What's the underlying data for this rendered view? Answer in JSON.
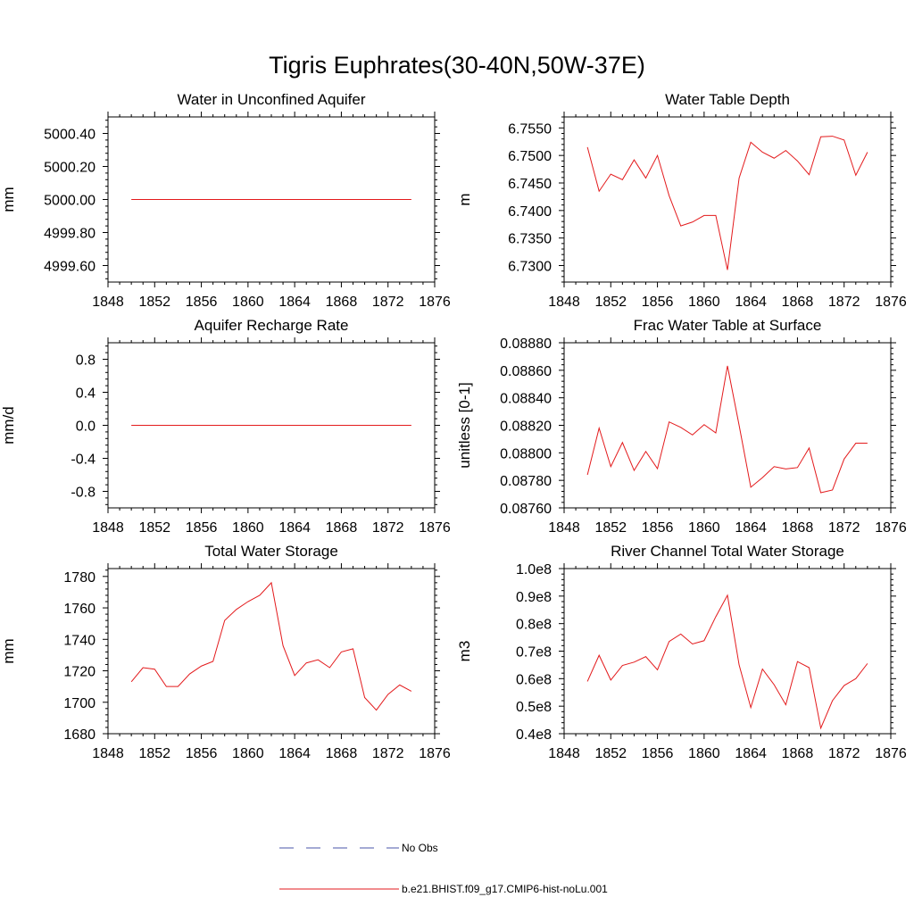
{
  "title": "Tigris Euphrates(30-40N,50W-37E)",
  "colors": {
    "model_line": "#e31a1c",
    "obs_line": "#4a55a8",
    "axis": "#000000"
  },
  "legend": {
    "obs_label": "No Obs",
    "model_label": "b.e21.BHIST.f09_g17.CMIP6-hist-noLu.001"
  },
  "chart_data": [
    {
      "type": "line",
      "title": "Water in Unconfined Aquifer",
      "xlabel": "",
      "ylabel": "mm",
      "xlim": [
        1848,
        1876
      ],
      "ylim": [
        4999.5,
        5000.5
      ],
      "x_ticks": [
        1848,
        1852,
        1856,
        1860,
        1864,
        1868,
        1872,
        1876
      ],
      "y_ticks": [
        4999.6,
        4999.8,
        5000.0,
        5000.2,
        5000.4
      ],
      "y_tick_labels": [
        "4999.60",
        "4999.80",
        "5000.00",
        "5000.20",
        "5000.40"
      ],
      "x": [
        1850,
        1874
      ],
      "series": [
        {
          "values": [
            5000.0,
            5000.0
          ]
        }
      ]
    },
    {
      "type": "line",
      "title": "Water Table Depth",
      "xlabel": "",
      "ylabel": "m",
      "xlim": [
        1848,
        1876
      ],
      "ylim": [
        6.727,
        6.757
      ],
      "x_ticks": [
        1848,
        1852,
        1856,
        1860,
        1864,
        1868,
        1872,
        1876
      ],
      "y_ticks": [
        6.73,
        6.735,
        6.74,
        6.745,
        6.75,
        6.755
      ],
      "y_tick_labels": [
        "6.7300",
        "6.7350",
        "6.7400",
        "6.7450",
        "6.7500",
        "6.7550"
      ],
      "x": [
        1850,
        1851,
        1852,
        1853,
        1854,
        1855,
        1856,
        1857,
        1858,
        1859,
        1860,
        1861,
        1862,
        1863,
        1864,
        1865,
        1866,
        1867,
        1868,
        1869,
        1870,
        1871,
        1872,
        1873,
        1874
      ],
      "series": [
        {
          "values": [
            6.7515,
            6.7435,
            6.7466,
            6.7456,
            6.7492,
            6.7459,
            6.75,
            6.7427,
            6.7372,
            6.7379,
            6.7391,
            6.7391,
            6.7292,
            6.7459,
            6.7524,
            6.7506,
            6.7495,
            6.7509,
            6.749,
            6.7465,
            6.7534,
            6.7535,
            6.7528,
            6.7464,
            6.7506
          ]
        }
      ]
    },
    {
      "type": "line",
      "title": "Aquifer Recharge Rate",
      "xlabel": "",
      "ylabel": "mm/d",
      "xlim": [
        1848,
        1876
      ],
      "ylim": [
        -1.0,
        1.0
      ],
      "x_ticks": [
        1848,
        1852,
        1856,
        1860,
        1864,
        1868,
        1872,
        1876
      ],
      "y_ticks": [
        -0.8,
        -0.4,
        0.0,
        0.4,
        0.8
      ],
      "y_tick_labels": [
        "-0.8",
        "-0.4",
        "0.0",
        "0.4",
        "0.8"
      ],
      "x": [
        1850,
        1874
      ],
      "series": [
        {
          "values": [
            0.0,
            0.0
          ]
        }
      ]
    },
    {
      "type": "line",
      "title": "Frac Water Table at Surface",
      "xlabel": "",
      "ylabel": "unitless [0-1]",
      "xlim": [
        1848,
        1876
      ],
      "ylim": [
        0.0876,
        0.0888
      ],
      "x_ticks": [
        1848,
        1852,
        1856,
        1860,
        1864,
        1868,
        1872,
        1876
      ],
      "y_ticks": [
        0.0876,
        0.0878,
        0.088,
        0.0882,
        0.0884,
        0.0886,
        0.0888
      ],
      "y_tick_labels": [
        "0.08760",
        "0.08780",
        "0.08800",
        "0.08820",
        "0.08840",
        "0.08860",
        "0.08880"
      ],
      "x": [
        1850,
        1851,
        1852,
        1853,
        1854,
        1855,
        1856,
        1857,
        1858,
        1859,
        1860,
        1861,
        1862,
        1863,
        1864,
        1865,
        1866,
        1867,
        1868,
        1869,
        1870,
        1871,
        1872,
        1873,
        1874
      ],
      "series": [
        {
          "values": [
            0.08784,
            0.08818,
            0.0879,
            0.088075,
            0.087872,
            0.08801,
            0.087885,
            0.088225,
            0.088185,
            0.08813,
            0.088205,
            0.088145,
            0.088632,
            0.0882,
            0.08775,
            0.08782,
            0.0879,
            0.087883,
            0.087893,
            0.088035,
            0.08771,
            0.08773,
            0.087955,
            0.08807,
            0.08807
          ]
        }
      ]
    },
    {
      "type": "line",
      "title": "Total Water Storage",
      "xlabel": "",
      "ylabel": "mm",
      "xlim": [
        1848,
        1876
      ],
      "ylim": [
        1680,
        1785
      ],
      "x_ticks": [
        1848,
        1852,
        1856,
        1860,
        1864,
        1868,
        1872,
        1876
      ],
      "y_ticks": [
        1680,
        1700,
        1720,
        1740,
        1760,
        1780
      ],
      "y_tick_labels": [
        "1680",
        "1700",
        "1720",
        "1740",
        "1760",
        "1780"
      ],
      "x": [
        1850,
        1851,
        1852,
        1853,
        1854,
        1855,
        1856,
        1857,
        1858,
        1859,
        1860,
        1861,
        1862,
        1863,
        1864,
        1865,
        1866,
        1867,
        1868,
        1869,
        1870,
        1871,
        1872,
        1873,
        1874
      ],
      "series": [
        {
          "values": [
            1713,
            1722,
            1721,
            1710,
            1710,
            1718,
            1723,
            1726,
            1752,
            1759,
            1764,
            1768,
            1776,
            1736,
            1717,
            1725,
            1727,
            1722,
            1732,
            1734,
            1703,
            1695,
            1705,
            1711,
            1707
          ]
        }
      ]
    },
    {
      "type": "line",
      "title": "River Channel Total Water Storage",
      "xlabel": "",
      "ylabel": "m3",
      "xlim": [
        1848,
        1876
      ],
      "ylim": [
        0.4,
        1.0
      ],
      "x_ticks": [
        1848,
        1852,
        1856,
        1860,
        1864,
        1868,
        1872,
        1876
      ],
      "y_ticks": [
        0.4,
        0.5,
        0.6,
        0.7,
        0.8,
        0.9,
        1.0
      ],
      "y_tick_labels": [
        "0.4e8",
        "0.5e8",
        "0.6e8",
        "0.7e8",
        "0.8e8",
        "0.9e8",
        "1.0e8"
      ],
      "x": [
        1850,
        1851,
        1852,
        1853,
        1854,
        1855,
        1856,
        1857,
        1858,
        1859,
        1860,
        1861,
        1862,
        1863,
        1864,
        1865,
        1866,
        1867,
        1868,
        1869,
        1870,
        1871,
        1872,
        1873,
        1874
      ],
      "series": [
        {
          "values": [
            0.59,
            0.685,
            0.595,
            0.648,
            0.66,
            0.68,
            0.632,
            0.735,
            0.762,
            0.726,
            0.738,
            0.825,
            0.903,
            0.65,
            0.495,
            0.635,
            0.578,
            0.505,
            0.662,
            0.64,
            0.42,
            0.52,
            0.575,
            0.6,
            0.655
          ]
        }
      ]
    }
  ]
}
